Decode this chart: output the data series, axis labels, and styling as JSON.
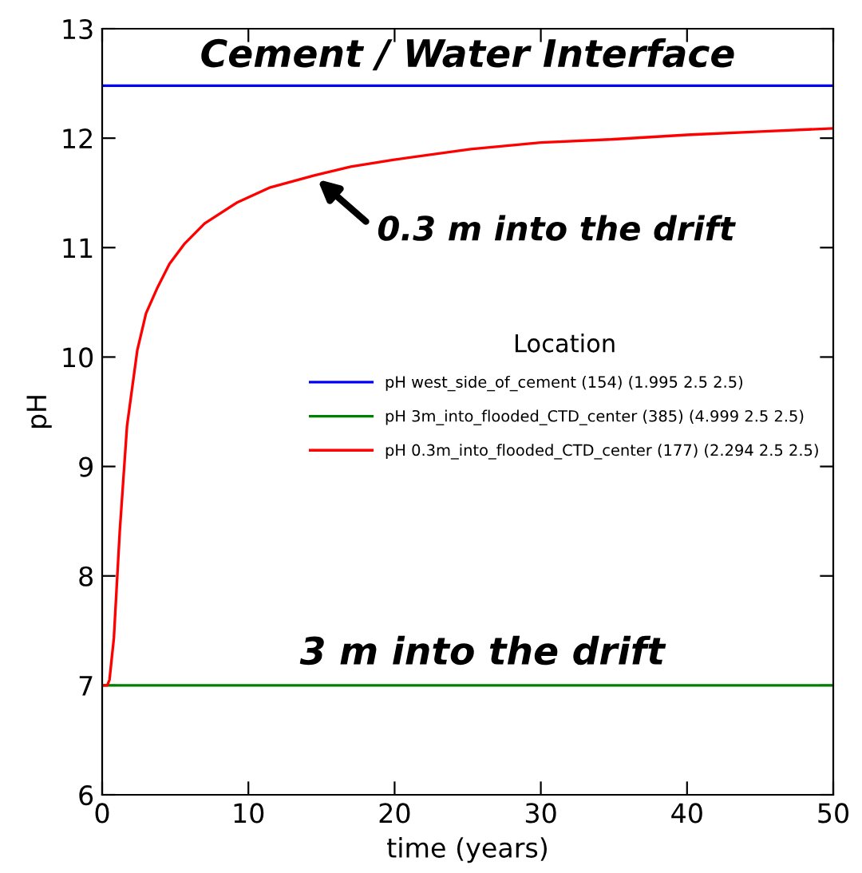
{
  "chart_data": {
    "type": "line",
    "xlabel": "time (years)",
    "ylabel": "pH",
    "legend_title": "Location",
    "legend": "right",
    "grid": false,
    "marker": "none",
    "line_style": "solid",
    "xlim": [
      0,
      50
    ],
    "ylim": [
      6,
      13
    ],
    "xticks": [
      0,
      10,
      20,
      30,
      40,
      50
    ],
    "yticks": [
      6,
      7,
      8,
      9,
      10,
      11,
      12,
      13
    ],
    "series": [
      {
        "name": "pH west_side_of_cement (154) (1.995 2.5 2.5)",
        "color": "#0000ff",
        "x": [
          0,
          50
        ],
        "values": [
          12.48,
          12.48
        ]
      },
      {
        "name": "pH 3m_into_flooded_CTD_center (385) (4.999 2.5 2.5)",
        "color": "#008000",
        "x": [
          0,
          50
        ],
        "values": [
          7.0,
          7.0
        ]
      },
      {
        "name": "pH 0.3m_into_flooded_CTD_center (177) (2.294 2.5 2.5)",
        "color": "#ff0000",
        "x": [
          0,
          0.35,
          0.5,
          0.8,
          1.2,
          1.7,
          2.4,
          3.0,
          3.8,
          4.6,
          5.6,
          7.0,
          9.2,
          11.5,
          14.5,
          17,
          19.8,
          25.2,
          30,
          35,
          40,
          45,
          50
        ],
        "values": [
          7.0,
          7.0,
          7.05,
          7.43,
          8.4,
          9.37,
          10.06,
          10.4,
          10.64,
          10.85,
          11.03,
          11.22,
          11.41,
          11.55,
          11.66,
          11.74,
          11.8,
          11.9,
          11.96,
          11.99,
          12.03,
          12.06,
          12.09
        ]
      }
    ],
    "annotations": [
      {
        "text": "Cement / Water Interface",
        "x": 25,
        "y": 12.48
      },
      {
        "text": "0.3 m into the drift",
        "x": 14.5,
        "y": 11.65
      },
      {
        "text": "3 m into the drift",
        "x": 26,
        "y": 7.0
      }
    ]
  }
}
